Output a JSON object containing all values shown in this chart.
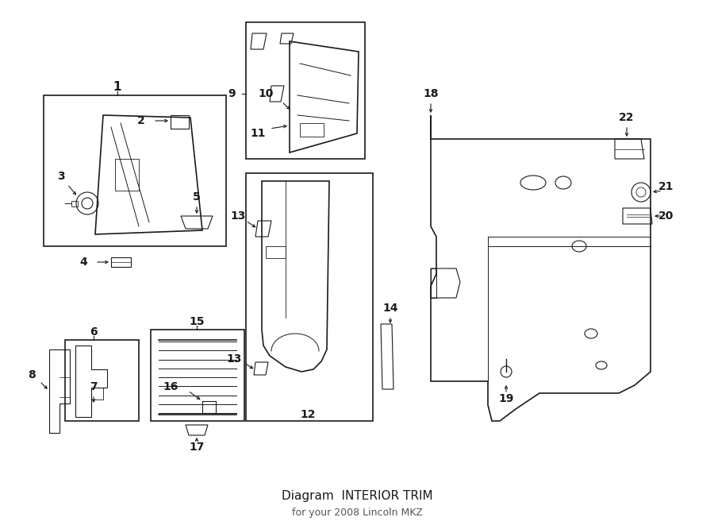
{
  "title": "Diagram  INTERIOR TRIM",
  "subtitle": "for your 2008 Lincoln MKZ",
  "bg_color": "#ffffff",
  "line_color": "#1a1a1a",
  "figsize": [
    9.0,
    6.61
  ],
  "dpi": 100,
  "note": "Technical parts diagram for 2008 Lincoln MKZ Interior Trim, parts 1-22"
}
